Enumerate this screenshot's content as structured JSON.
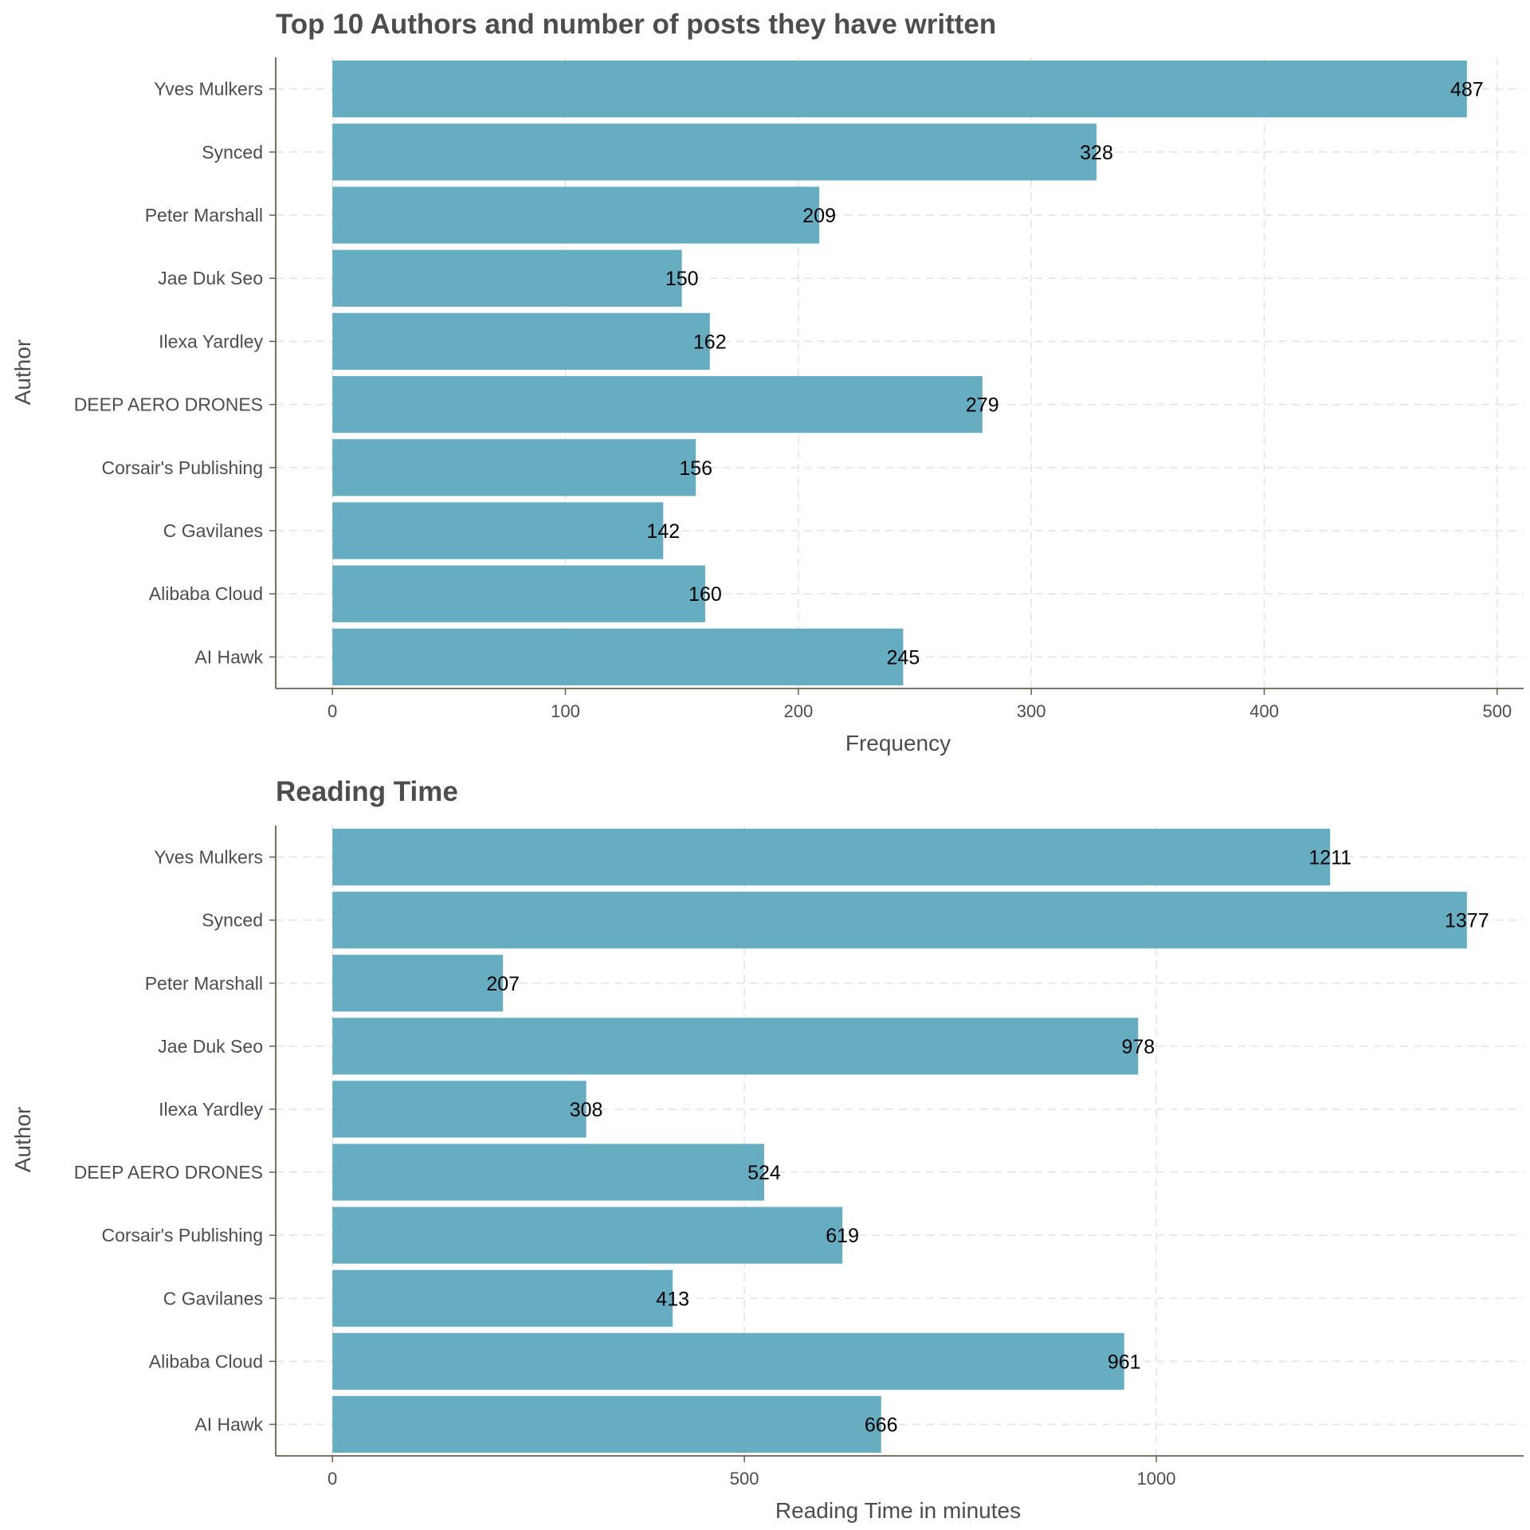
{
  "colors": {
    "bar": "#67adc2",
    "text": "#4d4d4d",
    "grid": "#e3e3e3",
    "axis": "#6b5f4f",
    "label": "#000000"
  },
  "chart_data": [
    {
      "type": "bar",
      "orientation": "horizontal",
      "title": "Top 10 Authors and number of posts they have written",
      "xlabel": "Frequency",
      "ylabel": "Author",
      "categories": [
        "Yves Mulkers",
        "Synced",
        "Peter Marshall",
        "Jae Duk Seo",
        "Ilexa Yardley",
        "DEEP AERO DRONES",
        "Corsair's Publishing",
        "C Gavilanes",
        "Alibaba Cloud",
        "AI Hawk"
      ],
      "values": [
        487,
        328,
        209,
        150,
        162,
        279,
        156,
        142,
        160,
        245
      ],
      "xlim": [
        -24.35,
        511.35
      ],
      "xticks": [
        0,
        100,
        200,
        300,
        400,
        500
      ],
      "grid": true,
      "legend": "none"
    },
    {
      "type": "bar",
      "orientation": "horizontal",
      "title": "Reading Time",
      "xlabel": "Reading Time in minutes",
      "ylabel": "Author",
      "categories": [
        "Yves Mulkers",
        "Synced",
        "Peter Marshall",
        "Jae Duk Seo",
        "Ilexa Yardley",
        "DEEP AERO DRONES",
        "Corsair's Publishing",
        "C Gavilanes",
        "Alibaba Cloud",
        "AI Hawk"
      ],
      "values": [
        1211,
        1377,
        207,
        978,
        308,
        524,
        619,
        413,
        961,
        666
      ],
      "xlim": [
        -68.85,
        1445.85
      ],
      "xticks": [
        0,
        500,
        1000
      ],
      "grid": true,
      "legend": "none"
    }
  ]
}
